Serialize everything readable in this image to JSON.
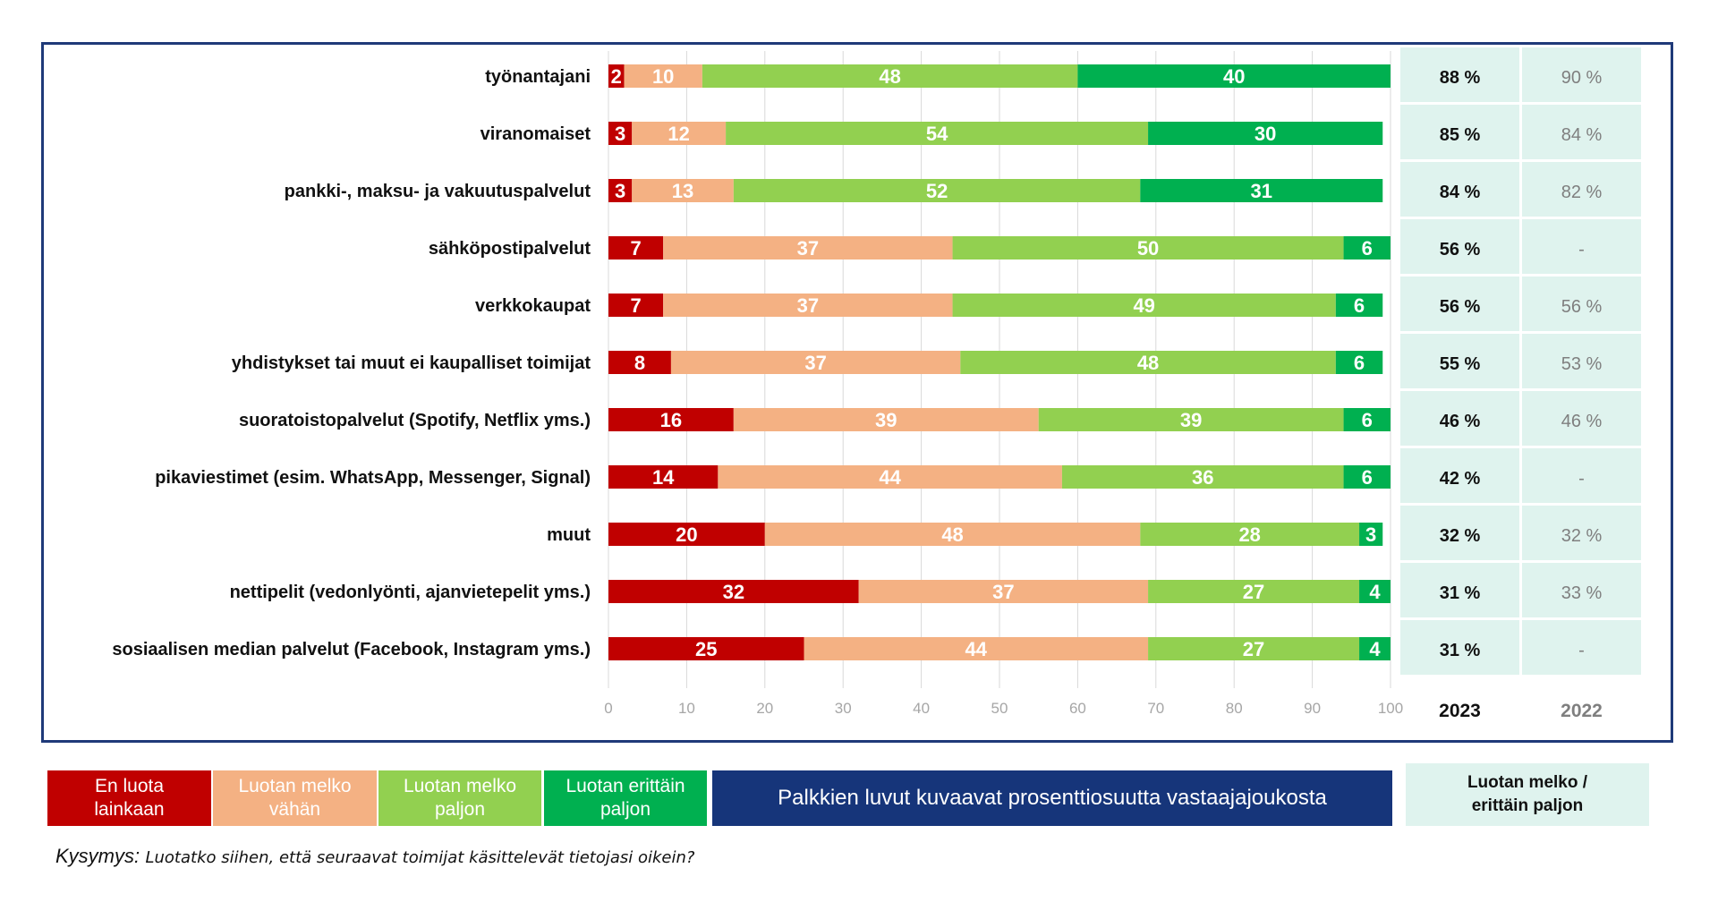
{
  "chart_data": {
    "type": "bar",
    "orientation": "horizontal",
    "stacked": true,
    "categories": [
      "työnantajani",
      "viranomaiset",
      "pankki-, maksu- ja vakuutuspalvelut",
      "sähköpostipalvelut",
      "verkkokaupat",
      "yhdistykset tai muut ei kaupalliset toimijat",
      "suoratoistopalvelut (Spotify, Netflix yms.)",
      "pikaviestimet (esim. WhatsApp, Messenger, Signal)",
      "muut",
      "nettipelit (vedonlyönti, ajanvietepelit yms.)",
      "sosiaalisen median palvelut (Facebook, Instagram yms.)"
    ],
    "series": [
      {
        "name": "En luota lainkaan",
        "color": "#c00000",
        "values": [
          2,
          3,
          3,
          7,
          7,
          8,
          16,
          14,
          20,
          32,
          25
        ]
      },
      {
        "name": "Luotan melko vähän",
        "color": "#f4b183",
        "values": [
          10,
          12,
          13,
          37,
          37,
          37,
          39,
          44,
          48,
          37,
          44
        ]
      },
      {
        "name": "Luotan melko paljon",
        "color": "#92d050",
        "values": [
          48,
          54,
          52,
          50,
          49,
          48,
          39,
          36,
          28,
          27,
          27
        ]
      },
      {
        "name": "Luotan erittäin paljon",
        "color": "#00b050",
        "values": [
          40,
          30,
          31,
          6,
          6,
          6,
          6,
          6,
          3,
          4,
          4
        ]
      }
    ],
    "xlim": [
      0,
      100
    ],
    "xticks": [
      "0",
      "10",
      "20",
      "30",
      "40",
      "50",
      "60",
      "70",
      "80",
      "90",
      "100"
    ],
    "summary_columns": [
      {
        "header": "2023",
        "values": [
          "88 %",
          "85 %",
          "84 %",
          "56 %",
          "56 %",
          "55 %",
          "46 %",
          "42 %",
          "32 %",
          "31 %",
          "31 %"
        ]
      },
      {
        "header": "2022",
        "values": [
          "90 %",
          "84 %",
          "82 %",
          "-",
          "56 %",
          "53 %",
          "46 %",
          "-",
          "32 %",
          "33 %",
          "-"
        ]
      }
    ]
  },
  "legend": {
    "items": [
      {
        "line1": "En luota",
        "line2": "lainkaan",
        "color": "#c00000"
      },
      {
        "line1": "Luotan melko",
        "line2": "vähän",
        "color": "#f4b183"
      },
      {
        "line1": "Luotan melko",
        "line2": "paljon",
        "color": "#92d050"
      },
      {
        "line1": "Luotan erittäin",
        "line2": "paljon",
        "color": "#00b050"
      }
    ],
    "note": "Palkkien luvut kuvaavat prosenttiosuutta vastaajajoukosta",
    "summary_line1": "Luotan melko /",
    "summary_line2": "erittäin  paljon"
  },
  "question": {
    "label": "Kysymys:",
    "text": "Luotatko siihen, että seuraavat toimijat käsittelevät tietojasi oikein?"
  },
  "colors": {
    "frame": "#1f3a79",
    "summary_bg": "#dff3ee",
    "note_bg": "#16357a"
  }
}
